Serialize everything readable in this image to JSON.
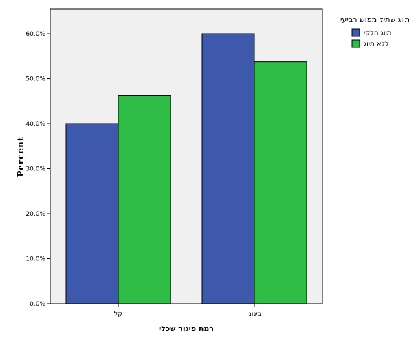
{
  "chart_data": {
    "type": "bar",
    "title": "",
    "xlabel": "רמת פיגור שכלי",
    "ylabel": "Percent",
    "categories": [
      "קל",
      "בינוני"
    ],
    "series": [
      {
        "name": "תיוג חלקי",
        "values": [
          40.0,
          60.0
        ],
        "color": "#3e58ac"
      },
      {
        "name": "ללא תיוג",
        "values": [
          46.2,
          53.8
        ],
        "color": "#2fbd48"
      }
    ],
    "ylim": [
      0,
      65.5
    ],
    "yticks": [
      0,
      10,
      20,
      30,
      40,
      50,
      60
    ],
    "ytick_labels": [
      "0.0%",
      "10.0%",
      "20.0%",
      "30.0%",
      "40.0%",
      "50.0%",
      "60.0%"
    ],
    "grid": false,
    "legend": {
      "title": "תיוג שתיל מפוש רביעי",
      "placement": "top-right"
    },
    "plot_background": "#f0f0f0"
  }
}
